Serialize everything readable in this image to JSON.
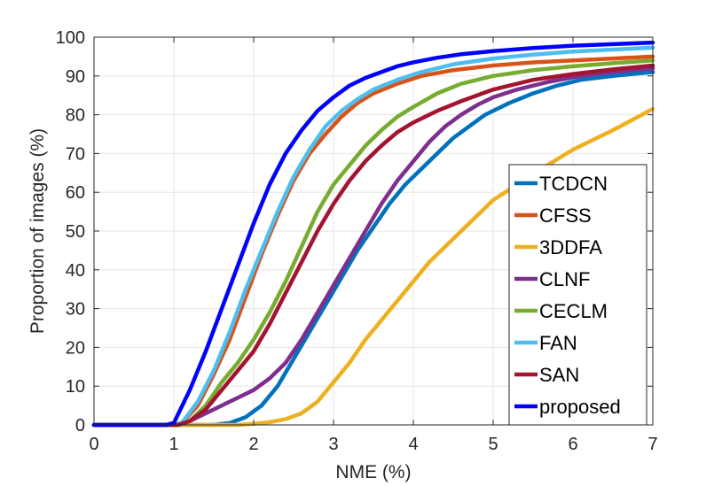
{
  "chart_data": {
    "type": "line",
    "title": "",
    "xlabel": "NME (%)",
    "ylabel": "Proportion of images (%)",
    "xlim": [
      0,
      7
    ],
    "ylim": [
      0,
      100
    ],
    "xticks": [
      "0",
      "1",
      "2",
      "3",
      "4",
      "5",
      "6",
      "7"
    ],
    "yticks": [
      "0",
      "10",
      "20",
      "30",
      "40",
      "50",
      "60",
      "70",
      "80",
      "90",
      "100"
    ],
    "grid": true,
    "legend_position": "lower-right",
    "series": [
      {
        "name": "TCDCN",
        "color": "#0072BD",
        "points": [
          [
            0,
            0
          ],
          [
            1.5,
            0
          ],
          [
            1.7,
            0.5
          ],
          [
            1.9,
            2
          ],
          [
            2.1,
            5
          ],
          [
            2.3,
            10
          ],
          [
            2.5,
            17
          ],
          [
            2.7,
            24
          ],
          [
            2.9,
            31
          ],
          [
            3.1,
            38
          ],
          [
            3.3,
            45
          ],
          [
            3.5,
            51
          ],
          [
            3.7,
            57
          ],
          [
            3.9,
            62
          ],
          [
            4.1,
            66
          ],
          [
            4.3,
            70
          ],
          [
            4.5,
            74
          ],
          [
            4.7,
            77
          ],
          [
            4.9,
            80
          ],
          [
            5.2,
            83
          ],
          [
            5.5,
            85.5
          ],
          [
            5.8,
            87.5
          ],
          [
            6.1,
            89
          ],
          [
            6.5,
            90
          ],
          [
            7,
            91
          ]
        ]
      },
      {
        "name": "CFSS",
        "color": "#D95319",
        "points": [
          [
            0,
            0
          ],
          [
            1.0,
            0
          ],
          [
            1.1,
            0.5
          ],
          [
            1.3,
            5
          ],
          [
            1.5,
            13
          ],
          [
            1.7,
            22
          ],
          [
            1.9,
            33
          ],
          [
            2.1,
            44
          ],
          [
            2.3,
            54
          ],
          [
            2.5,
            63
          ],
          [
            2.7,
            70
          ],
          [
            2.9,
            75
          ],
          [
            3.1,
            79.5
          ],
          [
            3.3,
            83
          ],
          [
            3.5,
            85.5
          ],
          [
            3.8,
            88
          ],
          [
            4.1,
            90
          ],
          [
            4.5,
            91.5
          ],
          [
            5.0,
            92.7
          ],
          [
            5.5,
            93.5
          ],
          [
            6.0,
            94
          ],
          [
            6.5,
            94.5
          ],
          [
            7,
            95
          ]
        ]
      },
      {
        "name": "3DDFA",
        "color": "#EDB120",
        "points": [
          [
            0,
            0
          ],
          [
            1.8,
            0
          ],
          [
            2.0,
            0.3
          ],
          [
            2.2,
            0.7
          ],
          [
            2.4,
            1.5
          ],
          [
            2.6,
            3
          ],
          [
            2.8,
            6
          ],
          [
            3.0,
            11
          ],
          [
            3.2,
            16
          ],
          [
            3.4,
            22
          ],
          [
            3.6,
            27
          ],
          [
            3.8,
            32
          ],
          [
            4.0,
            37
          ],
          [
            4.2,
            42
          ],
          [
            4.4,
            46
          ],
          [
            4.6,
            50
          ],
          [
            4.8,
            54
          ],
          [
            5.0,
            58
          ],
          [
            5.3,
            62
          ],
          [
            5.6,
            66
          ],
          [
            6.0,
            71
          ],
          [
            6.5,
            76
          ],
          [
            7,
            81.5
          ]
        ]
      },
      {
        "name": "CLNF",
        "color": "#7E2F8E",
        "points": [
          [
            0,
            0
          ],
          [
            1.05,
            0
          ],
          [
            1.2,
            1
          ],
          [
            1.4,
            3
          ],
          [
            1.6,
            5
          ],
          [
            1.8,
            7
          ],
          [
            2.0,
            9
          ],
          [
            2.2,
            12
          ],
          [
            2.4,
            16
          ],
          [
            2.6,
            22
          ],
          [
            2.8,
            29
          ],
          [
            3.0,
            36
          ],
          [
            3.2,
            43
          ],
          [
            3.4,
            50
          ],
          [
            3.6,
            57
          ],
          [
            3.8,
            63
          ],
          [
            4.0,
            68
          ],
          [
            4.2,
            73
          ],
          [
            4.4,
            77
          ],
          [
            4.6,
            80
          ],
          [
            4.8,
            82.5
          ],
          [
            5.0,
            84.5
          ],
          [
            5.3,
            86.5
          ],
          [
            5.7,
            88.5
          ],
          [
            6.1,
            90
          ],
          [
            6.5,
            91
          ],
          [
            7,
            92
          ]
        ]
      },
      {
        "name": "CECLM",
        "color": "#77AC30",
        "points": [
          [
            0,
            0
          ],
          [
            1.05,
            0
          ],
          [
            1.2,
            1
          ],
          [
            1.4,
            5
          ],
          [
            1.6,
            11
          ],
          [
            1.8,
            16
          ],
          [
            2.0,
            22
          ],
          [
            2.2,
            29
          ],
          [
            2.4,
            37
          ],
          [
            2.6,
            46
          ],
          [
            2.8,
            55
          ],
          [
            3.0,
            62
          ],
          [
            3.2,
            67
          ],
          [
            3.4,
            72
          ],
          [
            3.6,
            76
          ],
          [
            3.8,
            79.5
          ],
          [
            4.0,
            82
          ],
          [
            4.3,
            85.5
          ],
          [
            4.6,
            88
          ],
          [
            5.0,
            90
          ],
          [
            5.5,
            91.5
          ],
          [
            6.0,
            92.5
          ],
          [
            6.5,
            93.3
          ],
          [
            7,
            94
          ]
        ]
      },
      {
        "name": "FAN",
        "color": "#4DBEEE",
        "points": [
          [
            0,
            0
          ],
          [
            1.0,
            0
          ],
          [
            1.1,
            0.5
          ],
          [
            1.3,
            6
          ],
          [
            1.5,
            14
          ],
          [
            1.7,
            24
          ],
          [
            1.9,
            35
          ],
          [
            2.1,
            45
          ],
          [
            2.3,
            55
          ],
          [
            2.5,
            64
          ],
          [
            2.7,
            71
          ],
          [
            2.9,
            77
          ],
          [
            3.1,
            81
          ],
          [
            3.3,
            84
          ],
          [
            3.5,
            86.5
          ],
          [
            3.8,
            89
          ],
          [
            4.1,
            91
          ],
          [
            4.5,
            93
          ],
          [
            5.0,
            94.5
          ],
          [
            5.5,
            95.5
          ],
          [
            6.0,
            96.3
          ],
          [
            6.5,
            96.8
          ],
          [
            7,
            97.3
          ]
        ]
      },
      {
        "name": "SAN",
        "color": "#A2142F",
        "points": [
          [
            0,
            0
          ],
          [
            1.05,
            0
          ],
          [
            1.2,
            1
          ],
          [
            1.4,
            4
          ],
          [
            1.6,
            9
          ],
          [
            1.8,
            14
          ],
          [
            2.0,
            19
          ],
          [
            2.2,
            26
          ],
          [
            2.4,
            34
          ],
          [
            2.6,
            42
          ],
          [
            2.8,
            50
          ],
          [
            3.0,
            57
          ],
          [
            3.2,
            63
          ],
          [
            3.4,
            68
          ],
          [
            3.6,
            72
          ],
          [
            3.8,
            75.5
          ],
          [
            4.0,
            78
          ],
          [
            4.3,
            81
          ],
          [
            4.6,
            83.5
          ],
          [
            5.0,
            86.5
          ],
          [
            5.5,
            89
          ],
          [
            6.0,
            90.5
          ],
          [
            6.5,
            91.7
          ],
          [
            7,
            92.7
          ]
        ]
      },
      {
        "name": "proposed",
        "color": "#0000FF",
        "points": [
          [
            0,
            0
          ],
          [
            0.9,
            0
          ],
          [
            1.0,
            0.5
          ],
          [
            1.2,
            9
          ],
          [
            1.4,
            19
          ],
          [
            1.6,
            30
          ],
          [
            1.8,
            41
          ],
          [
            2.0,
            52
          ],
          [
            2.2,
            62
          ],
          [
            2.4,
            70
          ],
          [
            2.6,
            76
          ],
          [
            2.8,
            81
          ],
          [
            3.0,
            84.5
          ],
          [
            3.2,
            87.5
          ],
          [
            3.4,
            89.5
          ],
          [
            3.6,
            91
          ],
          [
            3.8,
            92.5
          ],
          [
            4.0,
            93.5
          ],
          [
            4.3,
            94.7
          ],
          [
            4.6,
            95.6
          ],
          [
            5.0,
            96.4
          ],
          [
            5.5,
            97.2
          ],
          [
            6.0,
            97.8
          ],
          [
            6.5,
            98.2
          ],
          [
            7,
            98.6
          ]
        ]
      }
    ]
  }
}
